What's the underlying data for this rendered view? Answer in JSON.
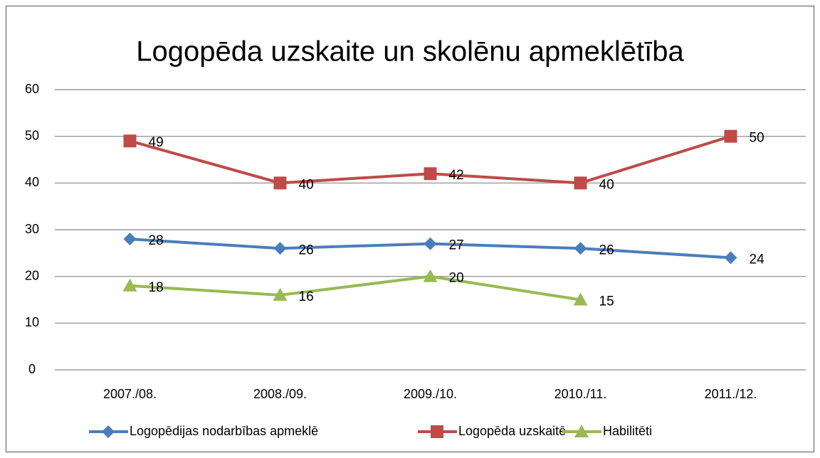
{
  "chart_data": {
    "type": "line",
    "title": "Logopēda uzskaite un skolēnu apmeklētība",
    "categories": [
      "2007./08.",
      "2008./09.",
      "2009./10.",
      "2010./11.",
      "2011./12."
    ],
    "series": [
      {
        "name": "Logopēdijas nodarbības apmeklē",
        "color": "#4a7ebb",
        "marker": "diamond",
        "values": [
          28,
          26,
          27,
          26,
          24
        ]
      },
      {
        "name": "Logopēda uzskaitē",
        "color": "#be4b48",
        "marker": "square",
        "values": [
          49,
          40,
          42,
          40,
          50
        ]
      },
      {
        "name": "Habilitēti",
        "color": "#98b954",
        "marker": "triangle",
        "values": [
          18,
          16,
          20,
          15,
          null
        ]
      }
    ],
    "ylim": [
      0,
      60
    ],
    "yticks": [
      0,
      10,
      20,
      30,
      40,
      50,
      60
    ],
    "grid": true,
    "legend": "bottom"
  }
}
